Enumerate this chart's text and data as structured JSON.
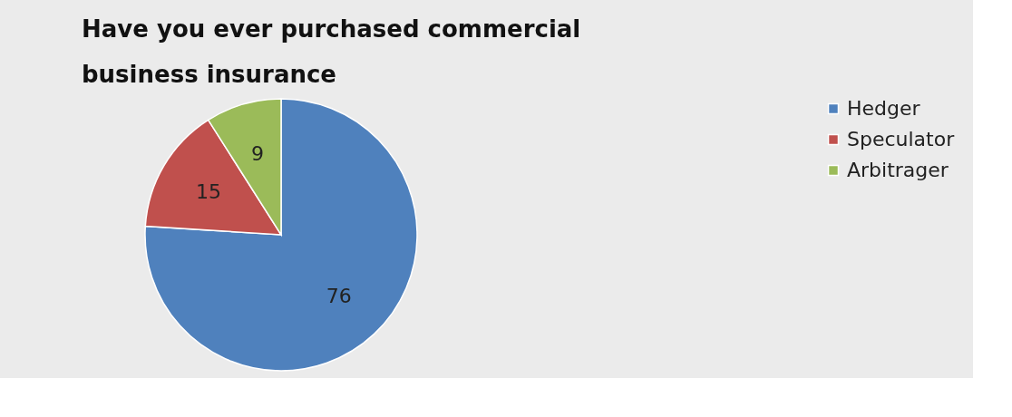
{
  "chart_data": {
    "type": "pie",
    "title": [
      "Have you ever purchased commercial",
      "business insurance"
    ],
    "categories": [
      "Hedger",
      "Speculator",
      "Arbitrager"
    ],
    "values": [
      76,
      15,
      9
    ],
    "colors": [
      "#4f81bd",
      "#c0504d",
      "#9bbb59"
    ],
    "data_labels": true,
    "legend": "right"
  }
}
